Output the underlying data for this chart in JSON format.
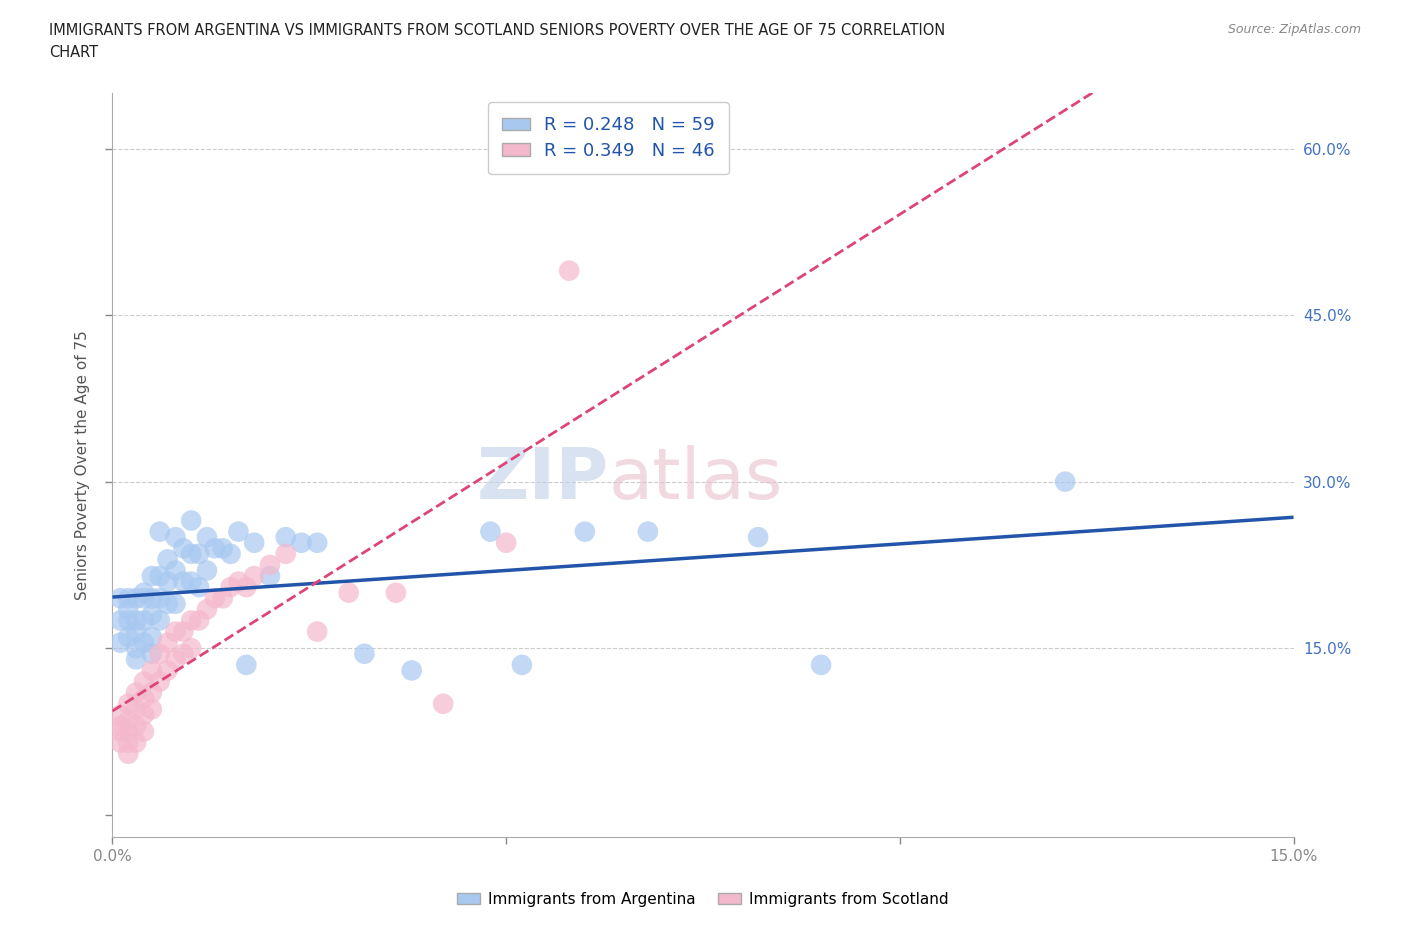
{
  "title_line1": "IMMIGRANTS FROM ARGENTINA VS IMMIGRANTS FROM SCOTLAND SENIORS POVERTY OVER THE AGE OF 75 CORRELATION",
  "title_line2": "CHART",
  "source": "Source: ZipAtlas.com",
  "ylabel": "Seniors Poverty Over the Age of 75",
  "xlim": [
    0.0,
    0.15
  ],
  "ylim": [
    -0.02,
    0.65
  ],
  "argentina_color": "#a8c8f0",
  "scotland_color": "#f4b8cc",
  "argentina_line_color": "#2255aa",
  "scotland_line_color": "#dd4477",
  "R_argentina": 0.248,
  "N_argentina": 59,
  "R_scotland": 0.349,
  "N_scotland": 46,
  "legend_label_argentina": "Immigrants from Argentina",
  "legend_label_scotland": "Immigrants from Scotland",
  "watermark": "ZIPatlas",
  "argentina_x": [
    0.001,
    0.001,
    0.001,
    0.002,
    0.002,
    0.002,
    0.002,
    0.003,
    0.003,
    0.003,
    0.003,
    0.003,
    0.004,
    0.004,
    0.004,
    0.004,
    0.005,
    0.005,
    0.005,
    0.005,
    0.005,
    0.006,
    0.006,
    0.006,
    0.006,
    0.007,
    0.007,
    0.007,
    0.008,
    0.008,
    0.008,
    0.009,
    0.009,
    0.01,
    0.01,
    0.01,
    0.011,
    0.011,
    0.012,
    0.012,
    0.013,
    0.014,
    0.015,
    0.016,
    0.017,
    0.018,
    0.02,
    0.022,
    0.024,
    0.026,
    0.032,
    0.038,
    0.048,
    0.052,
    0.06,
    0.068,
    0.082,
    0.09,
    0.121
  ],
  "argentina_y": [
    0.195,
    0.175,
    0.155,
    0.195,
    0.185,
    0.175,
    0.16,
    0.195,
    0.175,
    0.165,
    0.15,
    0.14,
    0.2,
    0.195,
    0.175,
    0.155,
    0.215,
    0.195,
    0.18,
    0.16,
    0.145,
    0.255,
    0.215,
    0.195,
    0.175,
    0.23,
    0.21,
    0.19,
    0.25,
    0.22,
    0.19,
    0.24,
    0.21,
    0.265,
    0.235,
    0.21,
    0.235,
    0.205,
    0.25,
    0.22,
    0.24,
    0.24,
    0.235,
    0.255,
    0.135,
    0.245,
    0.215,
    0.25,
    0.245,
    0.245,
    0.145,
    0.13,
    0.255,
    0.135,
    0.255,
    0.255,
    0.25,
    0.135,
    0.3
  ],
  "scotland_x": [
    0.001,
    0.001,
    0.001,
    0.001,
    0.002,
    0.002,
    0.002,
    0.002,
    0.002,
    0.003,
    0.003,
    0.003,
    0.003,
    0.004,
    0.004,
    0.004,
    0.004,
    0.005,
    0.005,
    0.005,
    0.006,
    0.006,
    0.007,
    0.007,
    0.008,
    0.008,
    0.009,
    0.009,
    0.01,
    0.01,
    0.011,
    0.012,
    0.013,
    0.014,
    0.015,
    0.016,
    0.017,
    0.018,
    0.02,
    0.022,
    0.026,
    0.03,
    0.036,
    0.042,
    0.05,
    0.058
  ],
  "scotland_y": [
    0.08,
    0.09,
    0.075,
    0.065,
    0.1,
    0.085,
    0.075,
    0.065,
    0.055,
    0.11,
    0.095,
    0.08,
    0.065,
    0.12,
    0.105,
    0.09,
    0.075,
    0.13,
    0.11,
    0.095,
    0.145,
    0.12,
    0.155,
    0.13,
    0.165,
    0.14,
    0.165,
    0.145,
    0.175,
    0.15,
    0.175,
    0.185,
    0.195,
    0.195,
    0.205,
    0.21,
    0.205,
    0.215,
    0.225,
    0.235,
    0.165,
    0.2,
    0.2,
    0.1,
    0.245,
    0.49
  ]
}
